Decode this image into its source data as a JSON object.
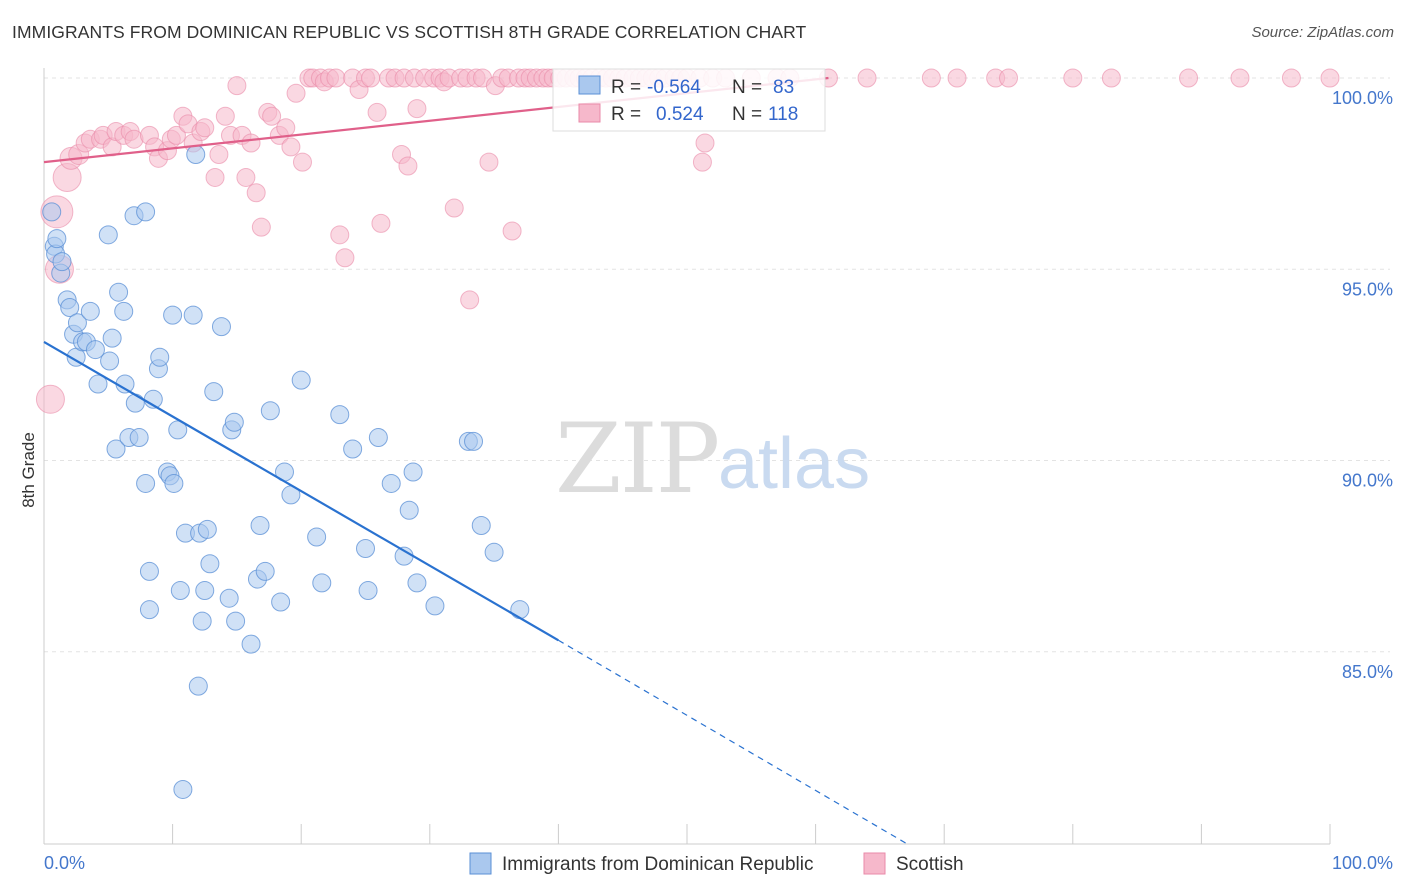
{
  "title": "IMMIGRANTS FROM DOMINICAN REPUBLIC VS SCOTTISH 8TH GRADE CORRELATION CHART",
  "source": "Source: ZipAtlas.com",
  "watermark": {
    "zip": "ZIP",
    "atlas": "atlas"
  },
  "colors": {
    "blue_fill": "#aac8ee",
    "blue_stroke": "#5a8fd6",
    "blue_line": "#2a72d0",
    "pink_fill": "#f6b8cb",
    "pink_stroke": "#e98aa8",
    "pink_line": "#e0608a",
    "grid": "#e3e3e3",
    "tick": "#4477cc"
  },
  "legend_box": {
    "rows": [
      {
        "r_label": "R =",
        "r_value": "-0.564",
        "n_label": "N =",
        "n_value": "83"
      },
      {
        "r_label": "R =",
        "r_value": "0.524",
        "n_label": "N =",
        "n_value": "118"
      }
    ]
  },
  "chart_data": {
    "type": "scatter",
    "title": "IMMIGRANTS FROM DOMINICAN REPUBLIC VS SCOTTISH 8TH GRADE CORRELATION CHART",
    "xlabel": "",
    "ylabel": "8th Grade",
    "x_ticks": [
      "0.0%",
      "100.0%"
    ],
    "y_ticks": [
      "100.0%",
      "95.0%",
      "90.0%",
      "85.0%"
    ],
    "xlim": [
      0,
      100
    ],
    "ylim": [
      80.0,
      100.5
    ],
    "grid": true,
    "legend_position": "bottom",
    "series": [
      {
        "name": "Immigrants from Dominican Republic",
        "R": -0.564,
        "N": 83,
        "trend": {
          "x": [
            0,
            40
          ],
          "y": [
            93.1,
            85.3
          ]
        },
        "trend_dashed": {
          "x": [
            40,
            67
          ],
          "y": [
            85.3,
            80.0
          ]
        },
        "points": [
          [
            0.6,
            96.5
          ],
          [
            0.8,
            95.6
          ],
          [
            0.9,
            95.4
          ],
          [
            1.3,
            94.9
          ],
          [
            1.4,
            95.2
          ],
          [
            1.8,
            94.2
          ],
          [
            2.0,
            94.0
          ],
          [
            2.3,
            93.3
          ],
          [
            2.6,
            93.6
          ],
          [
            2.5,
            92.7
          ],
          [
            3.0,
            93.1
          ],
          [
            3.3,
            93.1
          ],
          [
            3.6,
            93.9
          ],
          [
            4.0,
            92.9
          ],
          [
            4.2,
            92.0
          ],
          [
            5.0,
            95.9
          ],
          [
            5.1,
            92.6
          ],
          [
            5.3,
            93.2
          ],
          [
            5.6,
            90.3
          ],
          [
            5.8,
            94.4
          ],
          [
            6.2,
            93.9
          ],
          [
            6.3,
            92.0
          ],
          [
            6.6,
            90.6
          ],
          [
            7.0,
            96.4
          ],
          [
            7.1,
            91.5
          ],
          [
            7.4,
            90.6
          ],
          [
            7.9,
            96.5
          ],
          [
            7.9,
            89.4
          ],
          [
            8.2,
            87.1
          ],
          [
            8.2,
            86.1
          ],
          [
            8.5,
            91.6
          ],
          [
            8.9,
            92.4
          ],
          [
            9.0,
            92.7
          ],
          [
            9.6,
            89.7
          ],
          [
            9.8,
            89.6
          ],
          [
            10.0,
            93.8
          ],
          [
            10.1,
            89.4
          ],
          [
            10.4,
            90.8
          ],
          [
            10.6,
            86.6
          ],
          [
            11.0,
            88.1
          ],
          [
            11.6,
            93.8
          ],
          [
            11.8,
            98.0
          ],
          [
            12.0,
            84.1
          ],
          [
            12.1,
            88.1
          ],
          [
            12.3,
            85.8
          ],
          [
            12.5,
            86.6
          ],
          [
            12.7,
            88.2
          ],
          [
            12.9,
            87.3
          ],
          [
            13.2,
            91.8
          ],
          [
            13.8,
            93.5
          ],
          [
            14.4,
            86.4
          ],
          [
            14.6,
            90.8
          ],
          [
            14.8,
            91.0
          ],
          [
            14.9,
            85.8
          ],
          [
            16.1,
            85.2
          ],
          [
            16.6,
            86.9
          ],
          [
            16.8,
            88.3
          ],
          [
            17.2,
            87.1
          ],
          [
            17.6,
            91.3
          ],
          [
            18.4,
            86.3
          ],
          [
            18.7,
            89.7
          ],
          [
            19.2,
            89.1
          ],
          [
            20.0,
            92.1
          ],
          [
            21.2,
            88.0
          ],
          [
            21.6,
            86.8
          ],
          [
            23.0,
            91.2
          ],
          [
            24.0,
            90.3
          ],
          [
            25.0,
            87.7
          ],
          [
            25.2,
            86.6
          ],
          [
            26.0,
            90.6
          ],
          [
            27.0,
            89.4
          ],
          [
            28.0,
            87.5
          ],
          [
            28.4,
            88.7
          ],
          [
            28.7,
            89.7
          ],
          [
            29.0,
            86.8
          ],
          [
            30.4,
            86.2
          ],
          [
            33.0,
            90.5
          ],
          [
            33.4,
            90.5
          ],
          [
            34.0,
            88.3
          ],
          [
            35.0,
            87.6
          ],
          [
            37.0,
            86.1
          ],
          [
            1.0,
            95.8
          ],
          [
            10.8,
            81.4
          ]
        ]
      },
      {
        "name": "Scottish",
        "R": 0.524,
        "N": 118,
        "trend": {
          "x": [
            0,
            61
          ],
          "y": [
            97.8,
            100.0
          ]
        },
        "points": [
          [
            0.5,
            91.6,
            14
          ],
          [
            1.0,
            96.5,
            16
          ],
          [
            1.2,
            95.0,
            14
          ],
          [
            1.8,
            97.4,
            14
          ],
          [
            2.1,
            97.9,
            11
          ],
          [
            2.7,
            98.0,
            10
          ],
          [
            3.2,
            98.3,
            9
          ],
          [
            3.6,
            98.4,
            9
          ],
          [
            4.4,
            98.4,
            9
          ],
          [
            4.6,
            98.5,
            9
          ],
          [
            5.3,
            98.2,
            9
          ],
          [
            5.6,
            98.6,
            9
          ],
          [
            6.2,
            98.5,
            9
          ],
          [
            6.7,
            98.6,
            9
          ],
          [
            7.0,
            98.4,
            9
          ],
          [
            8.2,
            98.5,
            9
          ],
          [
            8.6,
            98.2,
            9
          ],
          [
            8.9,
            97.9,
            9
          ],
          [
            9.6,
            98.1,
            9
          ],
          [
            9.9,
            98.4,
            9
          ],
          [
            10.3,
            98.5,
            9
          ],
          [
            10.8,
            99.0,
            9
          ],
          [
            11.2,
            98.8,
            9
          ],
          [
            11.6,
            98.3,
            9
          ],
          [
            12.2,
            98.6,
            9
          ],
          [
            12.5,
            98.7,
            9
          ],
          [
            13.3,
            97.4,
            9
          ],
          [
            13.6,
            98.0,
            9
          ],
          [
            14.1,
            99.0,
            9
          ],
          [
            14.5,
            98.5,
            9
          ],
          [
            15.0,
            99.8,
            9
          ],
          [
            15.4,
            98.5,
            9
          ],
          [
            15.7,
            97.4,
            9
          ],
          [
            16.1,
            98.3,
            9
          ],
          [
            16.5,
            97.0,
            9
          ],
          [
            16.9,
            96.1,
            9
          ],
          [
            17.4,
            99.1,
            9
          ],
          [
            17.7,
            99.0,
            9
          ],
          [
            18.3,
            98.5,
            9
          ],
          [
            18.8,
            98.7,
            9
          ],
          [
            19.2,
            98.2,
            9
          ],
          [
            19.6,
            99.6,
            9
          ],
          [
            20.1,
            97.8,
            9
          ],
          [
            20.6,
            100.0,
            9
          ],
          [
            20.9,
            100.0,
            9
          ],
          [
            21.5,
            100.0,
            9
          ],
          [
            21.8,
            99.9,
            9
          ],
          [
            22.2,
            100.0,
            9
          ],
          [
            22.7,
            100.0,
            9
          ],
          [
            23.0,
            95.9,
            9
          ],
          [
            23.4,
            95.3,
            9
          ],
          [
            24.0,
            100.0,
            9
          ],
          [
            24.5,
            99.7,
            9
          ],
          [
            25.0,
            100.0,
            9
          ],
          [
            25.4,
            100.0,
            9
          ],
          [
            25.9,
            99.1,
            9
          ],
          [
            26.2,
            96.2,
            9
          ],
          [
            26.8,
            100.0,
            9
          ],
          [
            27.3,
            100.0,
            9
          ],
          [
            27.8,
            98.0,
            9
          ],
          [
            28.0,
            100.0,
            9
          ],
          [
            28.3,
            97.7,
            9
          ],
          [
            28.8,
            100.0,
            9
          ],
          [
            29.0,
            99.2,
            9
          ],
          [
            29.6,
            100.0,
            9
          ],
          [
            30.3,
            100.0,
            9
          ],
          [
            30.8,
            100.0,
            9
          ],
          [
            31.1,
            99.9,
            9
          ],
          [
            31.5,
            100.0,
            9
          ],
          [
            31.9,
            96.6,
            9
          ],
          [
            32.4,
            100.0,
            9
          ],
          [
            32.9,
            100.0,
            9
          ],
          [
            33.1,
            94.2,
            9
          ],
          [
            33.6,
            100.0,
            9
          ],
          [
            34.1,
            100.0,
            9
          ],
          [
            34.6,
            97.8,
            9
          ],
          [
            35.1,
            99.8,
            9
          ],
          [
            35.6,
            100.0,
            9
          ],
          [
            36.1,
            100.0,
            9
          ],
          [
            36.4,
            96.0,
            9
          ],
          [
            36.9,
            100.0,
            9
          ],
          [
            37.4,
            100.0,
            9
          ],
          [
            37.8,
            100.0,
            9
          ],
          [
            38.3,
            100.0,
            9
          ],
          [
            38.8,
            100.0,
            9
          ],
          [
            39.2,
            100.0,
            9
          ],
          [
            39.6,
            100.0,
            9
          ],
          [
            40.1,
            100.0,
            9
          ],
          [
            40.6,
            100.0,
            9
          ],
          [
            41.2,
            100.0,
            9
          ],
          [
            41.6,
            100.0,
            9
          ],
          [
            42.1,
            100.0,
            9
          ],
          [
            42.6,
            100.0,
            9
          ],
          [
            43.2,
            100.0,
            9
          ],
          [
            43.7,
            100.0,
            9
          ],
          [
            44.2,
            100.0,
            9
          ],
          [
            44.7,
            100.0,
            9
          ],
          [
            45.2,
            100.0,
            9
          ],
          [
            45.8,
            100.0,
            9
          ],
          [
            46.3,
            100.0,
            9
          ],
          [
            46.8,
            100.0,
            9
          ],
          [
            47.3,
            100.0,
            9
          ],
          [
            47.8,
            100.0,
            9
          ],
          [
            48.3,
            100.0,
            9
          ],
          [
            49.0,
            100.0,
            9
          ],
          [
            49.5,
            100.0,
            9
          ],
          [
            50.0,
            100.0,
            9
          ],
          [
            51.0,
            100.0,
            9
          ],
          [
            51.2,
            97.8,
            9
          ],
          [
            51.4,
            98.3,
            9
          ],
          [
            52.0,
            100.0,
            9
          ],
          [
            53.0,
            100.0,
            9
          ],
          [
            55.0,
            100.0,
            9
          ],
          [
            57.0,
            100.0,
            9
          ],
          [
            58.0,
            100.0,
            9
          ],
          [
            61.0,
            100.0,
            9
          ],
          [
            64.0,
            100.0,
            9
          ],
          [
            69.0,
            100.0,
            9
          ],
          [
            71.0,
            100.0,
            9
          ],
          [
            74.0,
            100.0,
            9
          ],
          [
            75.0,
            100.0,
            9
          ],
          [
            80.0,
            100.0,
            9
          ],
          [
            83.0,
            100.0,
            9
          ],
          [
            89.0,
            100.0,
            9
          ],
          [
            93.0,
            100.0,
            9
          ],
          [
            97.0,
            100.0,
            9
          ],
          [
            100.0,
            100.0,
            9
          ]
        ]
      }
    ]
  }
}
